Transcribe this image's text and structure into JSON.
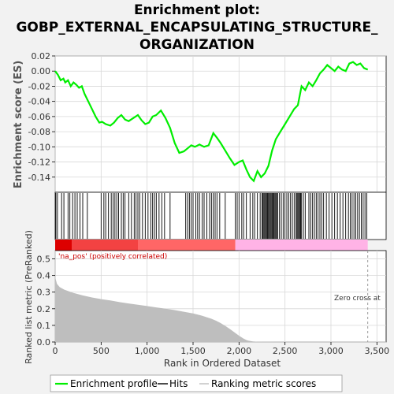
{
  "title_line1": "Enrichment plot:",
  "title_line2": "GOBP_EXTERNAL_ENCAPSULATING_STRUCTURE_",
  "title_line3": "ORGANIZATION",
  "colors": {
    "es_line": "#00ee00",
    "hits": "#000000",
    "metric_fill": "#bebebe",
    "pos_strong": "#dd0000",
    "pos_light": "#ff6666",
    "neg_light": "#ffb3e6",
    "zero_cross_line": "#999999"
  },
  "chart_data": [
    {
      "type": "line",
      "name": "enrichment-score-panel",
      "ylabel": "Enrichment score (ES)",
      "xlim": [
        0,
        3600
      ],
      "ylim": [
        -0.16,
        0.02
      ],
      "yticks": [
        "0.02",
        "0.00",
        "-0.02",
        "-0.04",
        "-0.06",
        "-0.08",
        "-0.10",
        "-0.12",
        "-0.14"
      ],
      "ytick_values": [
        0.02,
        0.0,
        -0.02,
        -0.04,
        -0.06,
        -0.08,
        -0.1,
        -0.12,
        -0.14
      ],
      "grid": true,
      "series": [
        {
          "name": "Enrichment profile",
          "x": [
            0,
            30,
            60,
            90,
            110,
            140,
            170,
            200,
            230,
            260,
            290,
            320,
            360,
            400,
            440,
            480,
            510,
            550,
            600,
            640,
            680,
            720,
            760,
            800,
            850,
            900,
            940,
            980,
            1020,
            1060,
            1100,
            1150,
            1200,
            1250,
            1300,
            1350,
            1400,
            1440,
            1480,
            1520,
            1570,
            1620,
            1670,
            1720,
            1760,
            1800,
            1850,
            1900,
            1950,
            2000,
            2040,
            2080,
            2120,
            2160,
            2200,
            2240,
            2280,
            2320,
            2360,
            2400,
            2450,
            2500,
            2550,
            2600,
            2640,
            2680,
            2720,
            2760,
            2800,
            2840,
            2880,
            2920,
            2960,
            3000,
            3040,
            3080,
            3120,
            3160,
            3200,
            3240,
            3280,
            3320,
            3360,
            3400
          ],
          "y": [
            0.0,
            -0.005,
            -0.012,
            -0.01,
            -0.015,
            -0.012,
            -0.02,
            -0.015,
            -0.018,
            -0.022,
            -0.02,
            -0.03,
            -0.04,
            -0.05,
            -0.06,
            -0.068,
            -0.067,
            -0.07,
            -0.072,
            -0.068,
            -0.062,
            -0.058,
            -0.064,
            -0.066,
            -0.062,
            -0.058,
            -0.065,
            -0.07,
            -0.068,
            -0.06,
            -0.058,
            -0.052,
            -0.062,
            -0.075,
            -0.095,
            -0.108,
            -0.106,
            -0.102,
            -0.098,
            -0.1,
            -0.097,
            -0.1,
            -0.098,
            -0.082,
            -0.088,
            -0.095,
            -0.105,
            -0.115,
            -0.124,
            -0.12,
            -0.118,
            -0.13,
            -0.14,
            -0.145,
            -0.132,
            -0.14,
            -0.135,
            -0.125,
            -0.105,
            -0.09,
            -0.08,
            -0.07,
            -0.06,
            -0.05,
            -0.045,
            -0.02,
            -0.025,
            -0.015,
            -0.02,
            -0.012,
            -0.003,
            0.002,
            0.008,
            0.004,
            0.0,
            0.006,
            0.002,
            0.0,
            0.01,
            0.012,
            0.008,
            0.01,
            0.004,
            0.002
          ]
        }
      ]
    },
    {
      "type": "scatter",
      "name": "hits-panel",
      "series": [
        {
          "name": "Hits",
          "x": [
            8,
            25,
            70,
            95,
            140,
            160,
            190,
            215,
            240,
            270,
            300,
            350,
            500,
            530,
            550,
            580,
            610,
            630,
            650,
            670,
            690,
            720,
            740,
            760,
            800,
            830,
            860,
            880,
            900,
            920,
            950,
            980,
            1010,
            1040,
            1060,
            1080,
            1100,
            1130,
            1160,
            1190,
            1250,
            1420,
            1440,
            1460,
            1480,
            1500,
            1530,
            1550,
            1570,
            1600,
            1620,
            1650,
            1680,
            1700,
            1720,
            1740,
            1760,
            1790,
            1850,
            1960,
            1980,
            2000,
            2030,
            2050,
            2080,
            2120,
            2150,
            2170,
            2200,
            2230,
            2250,
            2260,
            2270,
            2280,
            2290,
            2300,
            2310,
            2320,
            2330,
            2340,
            2350,
            2360,
            2370,
            2380,
            2390,
            2400,
            2410,
            2420,
            2440,
            2460,
            2480,
            2500,
            2520,
            2540,
            2560,
            2580,
            2600,
            2620,
            2630,
            2640,
            2650,
            2660,
            2670,
            2680,
            2700,
            2720,
            2760,
            2780,
            2800,
            2820,
            2840,
            2860,
            2880,
            2900,
            2920,
            2950,
            2980,
            3010,
            3040,
            3070,
            3100,
            3130,
            3160,
            3190,
            3210,
            3230,
            3250,
            3270,
            3290,
            3310,
            3330,
            3350,
            3370,
            3390
          ]
        }
      ]
    },
    {
      "type": "area",
      "name": "ranked-metric-panel",
      "xlabel": "Rank in Ordered Dataset",
      "ylabel": "Ranked list metric (PreRanked)",
      "xlim": [
        0,
        3600
      ],
      "ylim": [
        0,
        0.55
      ],
      "xticks": [
        "0",
        "500",
        "1,000",
        "1,500",
        "2,000",
        "2,500",
        "3,000",
        "3,500"
      ],
      "xtick_values": [
        0,
        500,
        1000,
        1500,
        2000,
        2500,
        3000,
        3500
      ],
      "yticks": [
        "0.0",
        "0.1",
        "0.2",
        "0.3",
        "0.4",
        "0.5"
      ],
      "ytick_values": [
        0.0,
        0.1,
        0.2,
        0.3,
        0.4,
        0.5
      ],
      "grid": true,
      "series": [
        {
          "name": "Ranking metric scores",
          "x": [
            0,
            5,
            20,
            50,
            100,
            200,
            300,
            400,
            500,
            600,
            700,
            800,
            900,
            1000,
            1100,
            1200,
            1300,
            1400,
            1500,
            1600,
            1700,
            1750,
            1800,
            1850,
            1900,
            1950,
            2000,
            2050,
            2080,
            2100,
            2150,
            2200,
            2300,
            2500,
            3000,
            3400
          ],
          "y": [
            0.41,
            0.38,
            0.35,
            0.33,
            0.315,
            0.295,
            0.28,
            0.268,
            0.258,
            0.25,
            0.24,
            0.232,
            0.224,
            0.216,
            0.208,
            0.2,
            0.192,
            0.182,
            0.172,
            0.158,
            0.14,
            0.128,
            0.114,
            0.097,
            0.078,
            0.058,
            0.038,
            0.02,
            0.012,
            0.008,
            0.004,
            0.002,
            0.001,
            0.0,
            0.0,
            0.0
          ]
        }
      ],
      "annotations": {
        "pos_label": "'na_pos' (positively correlated)",
        "zero_cross_label": "Zero cross at",
        "zero_cross_x": 3400,
        "pos_end_x": 1960
      }
    }
  ],
  "legend": {
    "es_label": "Enrichment profile",
    "hits_label": "Hits",
    "metric_label": "Ranking metric scores"
  }
}
